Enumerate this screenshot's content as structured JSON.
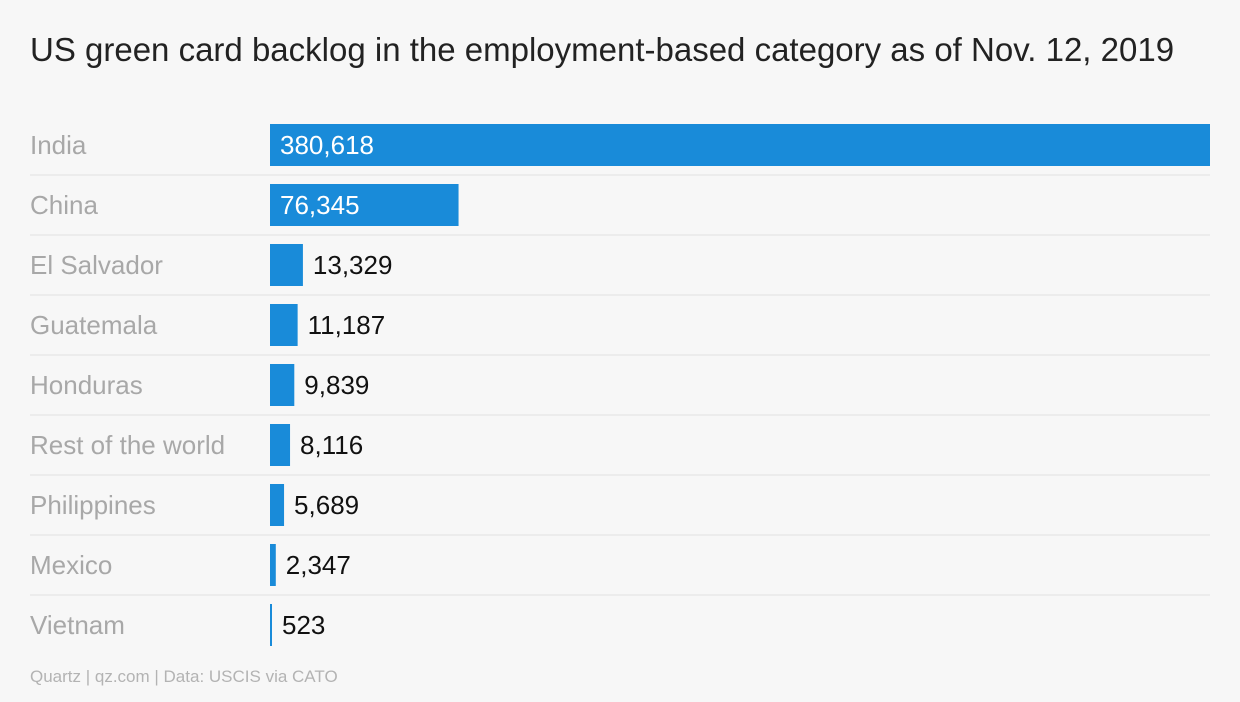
{
  "chart_data": {
    "type": "bar",
    "orientation": "horizontal",
    "title": "US green card backlog in the employment-based category as of Nov. 12, 2019",
    "categories": [
      "India",
      "China",
      "El Salvador",
      "Guatemala",
      "Honduras",
      "Rest of the world",
      "Philippines",
      "Mexico",
      "Vietnam"
    ],
    "values": [
      380618,
      76345,
      13329,
      11187,
      9839,
      8116,
      5689,
      2347,
      523
    ],
    "data_labels": [
      "380,618",
      "76,345",
      "13,329",
      "11,187",
      "9,839",
      "8,116",
      "5,689",
      "2,347",
      "523"
    ],
    "xlim": [
      0,
      380618
    ],
    "grid": false,
    "legend": "none",
    "colors": {
      "bar": "#198bd9",
      "category_label": "#a8a8a8",
      "label_inside": "#ffffff",
      "label_outside": "#111111",
      "separator": "#e2e2e2"
    }
  },
  "source": "Quartz | qz.com | Data: USCIS via CATO"
}
